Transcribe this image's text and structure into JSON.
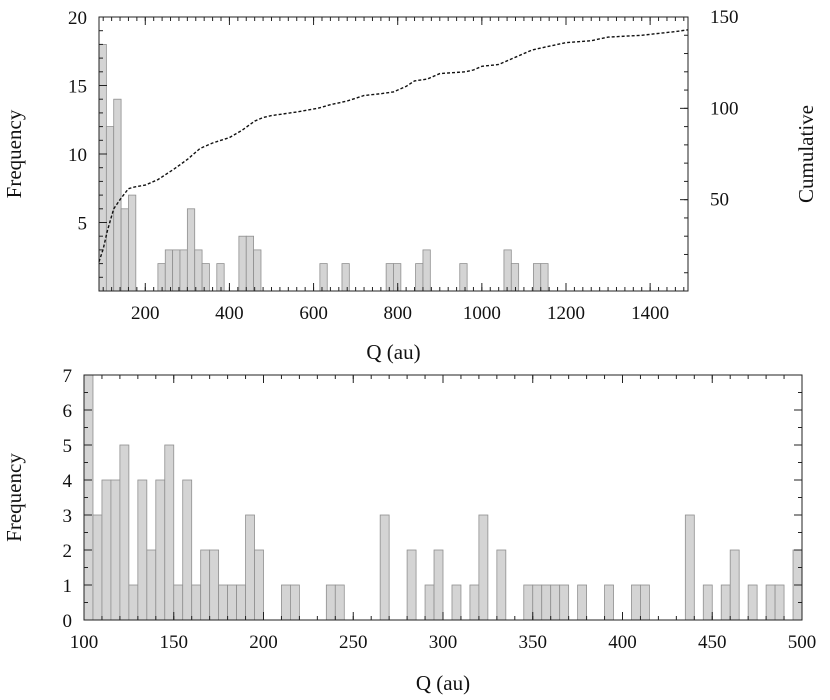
{
  "chart_data": [
    {
      "type": "bar",
      "panel": "top",
      "xlabel": "Q (au)",
      "ylabel": "Frequency",
      "y2label": "Cumulative",
      "xlim": [
        90,
        1490
      ],
      "ylim": [
        0,
        20
      ],
      "y2lim": [
        0,
        150
      ],
      "bin_width": 17.5,
      "xticks": [
        200,
        400,
        600,
        800,
        1000,
        1200,
        1400
      ],
      "yticks": [
        5,
        10,
        15,
        20
      ],
      "y2ticks": [
        50,
        100,
        150
      ],
      "grid": false,
      "series": [
        {
          "kind": "histogram",
          "bin_starts": [
            90,
            107.5,
            125,
            142.5,
            160,
            230,
            247.5,
            265,
            282.5,
            300,
            317.5,
            335,
            370,
            422.5,
            440,
            457.5,
            615,
            667.5,
            772.5,
            790,
            842.5,
            860,
            947.5,
            1052.5,
            1070,
            1122.5,
            1140
          ],
          "values": [
            18,
            12,
            14,
            6,
            7,
            2,
            3,
            3,
            3,
            6,
            3,
            2,
            2,
            4,
            4,
            3,
            2,
            2,
            2,
            2,
            2,
            3,
            2,
            3,
            2,
            2,
            2
          ]
        },
        {
          "kind": "cumulative-line",
          "axis": "right",
          "x": [
            90,
            100,
            110,
            125,
            140,
            160,
            175,
            200,
            230,
            270,
            300,
            330,
            360,
            400,
            430,
            460,
            480,
            500,
            560,
            610,
            640,
            680,
            720,
            760,
            790,
            820,
            840,
            870,
            900,
            960,
            980,
            1000,
            1040,
            1060,
            1080,
            1120,
            1160,
            1200,
            1260,
            1300,
            1380,
            1420,
            1460,
            1490
          ],
          "values": [
            16,
            23,
            33,
            45,
            50,
            56,
            57,
            58,
            61,
            67,
            72,
            78,
            81,
            84,
            88,
            93,
            95,
            96,
            98,
            100,
            102,
            104,
            107,
            108,
            109,
            112,
            115,
            116,
            119,
            120,
            121,
            123,
            124,
            126,
            128,
            132,
            134,
            136,
            137,
            139,
            140,
            141,
            142,
            143
          ]
        }
      ]
    },
    {
      "type": "bar",
      "panel": "bottom",
      "xlabel": "Q (au)",
      "ylabel": "Frequency",
      "xlim": [
        100,
        500
      ],
      "ylim": [
        0,
        7
      ],
      "bin_width": 5,
      "xticks": [
        100,
        150,
        200,
        250,
        300,
        350,
        400,
        450,
        500
      ],
      "yticks": [
        0,
        1,
        2,
        3,
        4,
        5,
        6,
        7
      ],
      "grid": false,
      "series": [
        {
          "kind": "histogram",
          "values": [
            7,
            3,
            4,
            4,
            5,
            1,
            4,
            2,
            4,
            5,
            1,
            4,
            1,
            2,
            2,
            1,
            1,
            1,
            3,
            2,
            0,
            0,
            1,
            1,
            0,
            0,
            0,
            1,
            1,
            0,
            0,
            0,
            0,
            3,
            0,
            0,
            2,
            0,
            1,
            2,
            0,
            1,
            0,
            1,
            3,
            0,
            2,
            0,
            0,
            1,
            1,
            1,
            1,
            1,
            0,
            1,
            0,
            0,
            1,
            0,
            0,
            1,
            1,
            0,
            0,
            0,
            0,
            3,
            0,
            1,
            0,
            1,
            2,
            0,
            1,
            0,
            1,
            1,
            0,
            2,
            1
          ]
        }
      ]
    }
  ]
}
